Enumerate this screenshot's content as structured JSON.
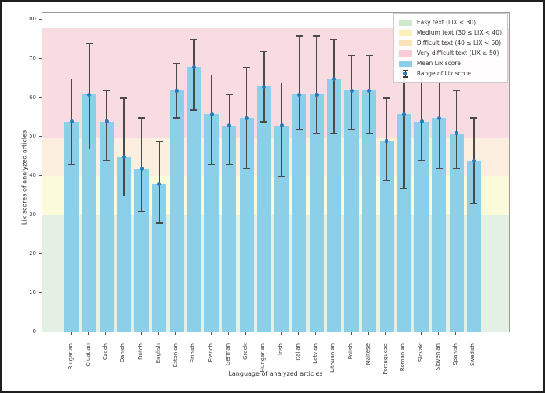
{
  "colors": {
    "bar": "#8bcfe9",
    "mean_dot": "#2879b8",
    "error_bar": "#4a4a4a",
    "spine": "#9a9a9a",
    "tick_text": "#3a3a3a",
    "band_easy": "#e4f0e4",
    "band_medium": "#fbfbdc",
    "band_difficult": "#fcefdf",
    "band_very_difficult": "#f9dce1",
    "figure_border": "#1f1f1f",
    "legend_border": "#cccccc"
  },
  "chart_data": {
    "type": "bar",
    "title": "",
    "xlabel": "Language of analyzed articles",
    "ylabel": "Lix scores of analyzed articles",
    "ylim": [
      0,
      82
    ],
    "yticks": [
      0,
      10,
      20,
      30,
      40,
      50,
      60,
      70,
      80
    ],
    "grid": false,
    "legend_position": "upper right",
    "categories": [
      "Bulgarian",
      "Croatian",
      "Czech",
      "Danish",
      "Dutch",
      "English",
      "Estonian",
      "Finnish",
      "French",
      "German",
      "Greek",
      "Hungarian",
      "Irish",
      "Italian",
      "Latvian",
      "Lithuanian",
      "Polish",
      "Maltese",
      "Portuguese",
      "Romanian",
      "Slovak",
      "Slovenian",
      "Spanish",
      "Swedish"
    ],
    "series": [
      {
        "name": "Mean Lix score",
        "type": "bar",
        "values": [
          54,
          61,
          54,
          45,
          42,
          38,
          62,
          68,
          56,
          53,
          55,
          63,
          53,
          61,
          61,
          65,
          62,
          62,
          49,
          56,
          54,
          55,
          51,
          44
        ]
      },
      {
        "name": "Range of Lix score",
        "type": "errorbar",
        "low": [
          43,
          47,
          44,
          35,
          31,
          28,
          55,
          57,
          43,
          43,
          42,
          54,
          40,
          52,
          51,
          51,
          52,
          51,
          39,
          37,
          44,
          42,
          42,
          33
        ],
        "high": [
          65,
          74,
          62,
          60,
          55,
          49,
          69,
          75,
          66,
          61,
          68,
          72,
          64,
          76,
          76,
          75,
          71,
          71,
          60,
          67,
          66,
          64,
          62,
          55
        ]
      }
    ],
    "bands": [
      {
        "name": "easy",
        "label": "Easy text (LIX < 30)",
        "from": 0,
        "to": 30,
        "color": "#e4f0e4"
      },
      {
        "name": "medium",
        "label": "Medium text (30 ≤ LIX < 40)",
        "from": 30,
        "to": 40,
        "color": "#fbfbdc"
      },
      {
        "name": "difficult",
        "label": "Difficult text (40 ≤ LIX < 50)",
        "from": 40,
        "to": 50,
        "color": "#fcefdf"
      },
      {
        "name": "very-difficult",
        "label": "Very difficult text (LIX ≥ 50)",
        "from": 50,
        "to": 78,
        "color": "#f9dce1"
      }
    ],
    "legend_items": [
      {
        "label": "Easy text (LIX < 30)",
        "swatch": "patch",
        "color": "#cfe8cb"
      },
      {
        "label": "Medium text (30 ≤ LIX < 40)",
        "swatch": "patch",
        "color": "#faf0b8"
      },
      {
        "label": "Difficult text (40 ≤ LIX < 50)",
        "swatch": "patch",
        "color": "#fbe2b8"
      },
      {
        "label": "Very difficult text (LIX ≥ 50)",
        "swatch": "patch",
        "color": "#f8ccd4"
      },
      {
        "label": "Mean Lix score",
        "swatch": "patch",
        "color": "#8bcfe9"
      },
      {
        "label": "Range of Lix score",
        "swatch": "errorbar",
        "color": "#3a3a3a"
      }
    ]
  }
}
